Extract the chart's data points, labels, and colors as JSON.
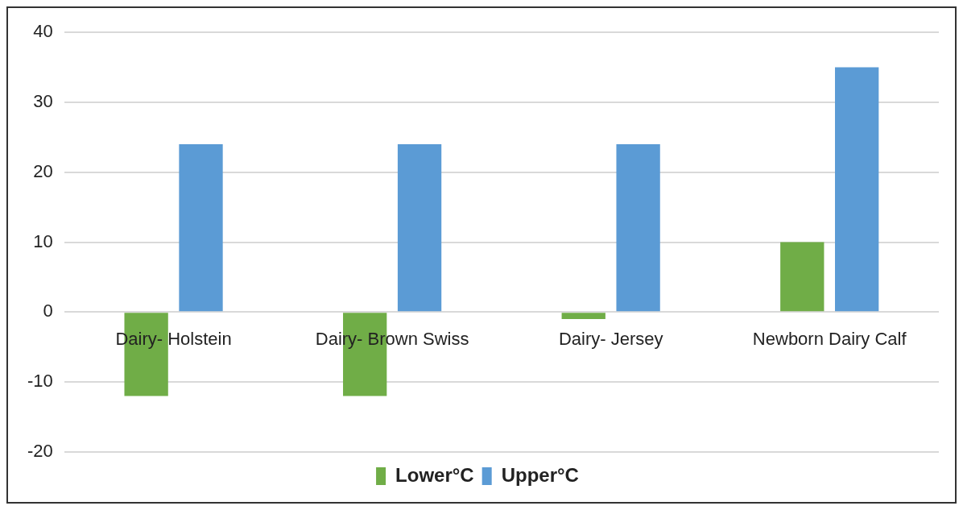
{
  "chart_data": {
    "type": "bar",
    "categories": [
      "Dairy- Holstein",
      "Dairy- Brown Swiss",
      "Dairy- Jersey",
      "Newborn Dairy Calf"
    ],
    "series": [
      {
        "name": "Lower°C",
        "color": "#70ad47",
        "values": [
          -12,
          -12,
          -1,
          10
        ]
      },
      {
        "name": "Upper°C",
        "color": "#5b9bd5",
        "values": [
          24,
          24,
          24,
          35
        ]
      }
    ],
    "ylim": [
      -20,
      40
    ],
    "yticks": [
      -20,
      -10,
      0,
      10,
      20,
      30,
      40
    ],
    "grid": "y",
    "legend": "bottom"
  }
}
